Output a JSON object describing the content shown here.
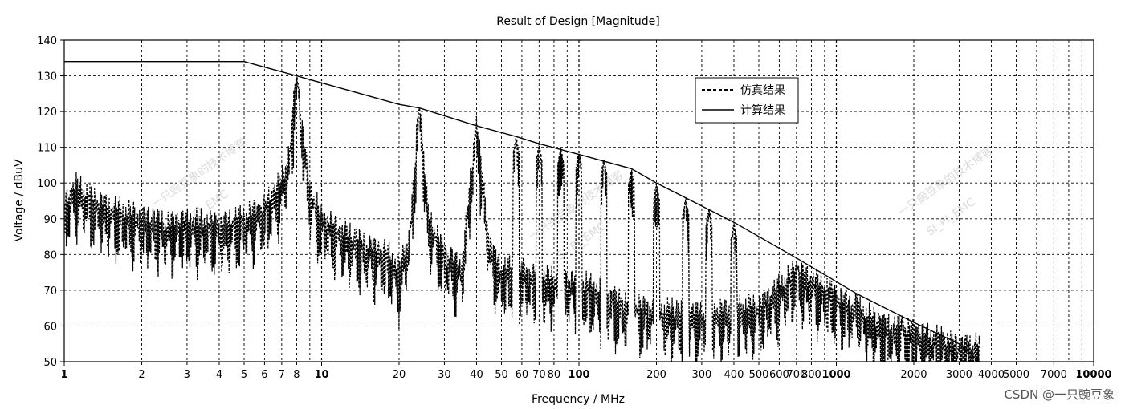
{
  "chart_data": {
    "type": "line",
    "title": "Result of Design [Magnitude]",
    "xlabel": "Frequency / MHz",
    "ylabel": "Voltage / dBuV",
    "x_scale": "log",
    "xlim": [
      1,
      10000
    ],
    "ylim": [
      50,
      140
    ],
    "grid": true,
    "legend_position": "top-right",
    "x_tick_labels": [
      "1",
      "2",
      "3",
      "4",
      "5",
      "6",
      "7",
      "8",
      "10",
      "20",
      "30",
      "40",
      "50",
      "60",
      "70",
      "80",
      "100",
      "200",
      "300",
      "400",
      "500",
      "600",
      "700",
      "800",
      "1000",
      "2000",
      "3000",
      "4000",
      "5000",
      "7000",
      "10000"
    ],
    "x_tick_values": [
      1,
      2,
      3,
      4,
      5,
      6,
      7,
      8,
      10,
      20,
      30,
      40,
      50,
      60,
      70,
      80,
      100,
      200,
      300,
      400,
      500,
      600,
      700,
      800,
      1000,
      2000,
      3000,
      4000,
      5000,
      7000,
      10000
    ],
    "major_x_ticks": [
      1,
      10,
      100,
      1000,
      10000
    ],
    "y_ticks": [
      50,
      60,
      70,
      80,
      90,
      100,
      110,
      120,
      130,
      140
    ],
    "series": [
      {
        "name": "仿真结果",
        "style": "dashed",
        "color": "#000000",
        "x": [
          1,
          1.1,
          1.3,
          1.6,
          2,
          2.5,
          3,
          4,
          5,
          6,
          7,
          7.5,
          8,
          8.5,
          9,
          10,
          12,
          15,
          18,
          20,
          22,
          24,
          26,
          30,
          35,
          40,
          45,
          50,
          57,
          70,
          100,
          150,
          200,
          300,
          500,
          700,
          1000,
          1500,
          2000,
          3000
        ],
        "y": [
          93,
          99,
          95,
          92,
          90,
          88,
          89,
          88,
          90,
          93,
          100,
          108,
          128,
          112,
          98,
          90,
          86,
          82,
          80,
          75,
          85,
          120,
          90,
          80,
          76,
          116,
          82,
          75,
          76,
          73,
          72,
          66,
          64,
          63,
          65,
          75,
          68,
          60,
          58,
          54
        ],
        "peaks": [
          [
            8,
            130
          ],
          [
            24,
            121
          ],
          [
            40,
            116
          ],
          [
            57,
            113
          ],
          [
            70,
            111
          ],
          [
            85,
            110
          ],
          [
            100,
            109
          ],
          [
            125,
            107
          ],
          [
            160,
            104
          ],
          [
            200,
            100
          ],
          [
            260,
            96
          ],
          [
            320,
            93
          ],
          [
            400,
            89
          ],
          [
            700,
            78
          ],
          [
            1200,
            69
          ],
          [
            1800,
            63
          ],
          [
            2500,
            58
          ],
          [
            3200,
            54
          ]
        ]
      },
      {
        "name": "计算结果",
        "style": "solid",
        "color": "#000000",
        "x": [
          1,
          5,
          8,
          20,
          24,
          40,
          57,
          70,
          100,
          160,
          200,
          400,
          700,
          1200,
          2000,
          3000,
          3600
        ],
        "y": [
          134,
          134,
          130,
          122,
          121,
          116,
          113,
          111,
          108,
          104,
          100,
          89,
          79,
          69,
          61,
          55,
          50
        ]
      }
    ]
  },
  "watermark": {
    "cn_text": "一只豌豆象的技术博客",
    "en_text": "SI_PI_EMC",
    "corner_credit": "CSDN @一只豌豆象"
  }
}
